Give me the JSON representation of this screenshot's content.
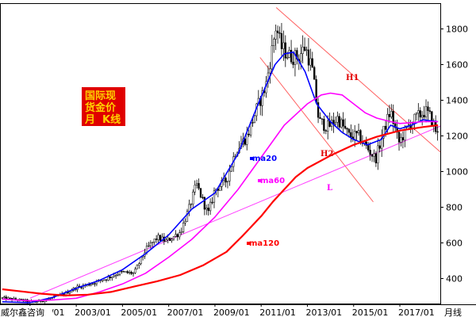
{
  "chart_data": {
    "type": "line",
    "chart_kind": "candlestick",
    "title_lines": [
      "国际现",
      "货金价",
      "月  K线"
    ],
    "title_colors": {
      "background": "#e00000",
      "text": "#ffd200"
    },
    "source_label": "威尔鑫咨询",
    "period_label": "月线",
    "ylim": [
      260,
      1940
    ],
    "y_ticks": [
      400,
      600,
      800,
      1000,
      1200,
      1400,
      1600,
      1800
    ],
    "x_tick_labels": [
      "2001/01",
      "2003/01",
      "2005/01",
      "2007/01",
      "2009/01",
      "2011/01",
      "2013/01",
      "2015/01",
      "2017/01"
    ],
    "x_tick_years": [
      2001,
      2003,
      2005,
      2007,
      2009,
      2011,
      2013,
      2015,
      2017
    ],
    "xlim_years": [
      1999.7,
      2018.75
    ],
    "candle_keypoints": [
      [
        1999.8,
        290
      ],
      [
        2000.5,
        280
      ],
      [
        2001.2,
        268
      ],
      [
        2001.8,
        285
      ],
      [
        2002.5,
        315
      ],
      [
        2003.0,
        350
      ],
      [
        2003.6,
        370
      ],
      [
        2004.3,
        400
      ],
      [
        2004.9,
        435
      ],
      [
        2005.5,
        430
      ],
      [
        2006.0,
        560
      ],
      [
        2006.5,
        630
      ],
      [
        2006.9,
        610
      ],
      [
        2007.5,
        660
      ],
      [
        2007.9,
        800
      ],
      [
        2008.2,
        930
      ],
      [
        2008.7,
        760
      ],
      [
        2009.0,
        900
      ],
      [
        2009.5,
        950
      ],
      [
        2009.9,
        1120
      ],
      [
        2010.4,
        1200
      ],
      [
        2010.8,
        1350
      ],
      [
        2011.2,
        1480
      ],
      [
        2011.65,
        1820
      ],
      [
        2011.85,
        1700
      ],
      [
        2012.2,
        1650
      ],
      [
        2012.6,
        1640
      ],
      [
        2012.9,
        1700
      ],
      [
        2013.2,
        1580
      ],
      [
        2013.5,
        1280
      ],
      [
        2013.9,
        1250
      ],
      [
        2014.3,
        1300
      ],
      [
        2014.8,
        1200
      ],
      [
        2015.2,
        1200
      ],
      [
        2015.6,
        1130
      ],
      [
        2015.95,
        1070
      ],
      [
        2016.4,
        1270
      ],
      [
        2016.6,
        1340
      ],
      [
        2016.95,
        1160
      ],
      [
        2017.4,
        1260
      ],
      [
        2017.7,
        1300
      ],
      [
        2018.1,
        1340
      ],
      [
        2018.35,
        1300
      ],
      [
        2018.65,
        1200
      ]
    ],
    "moving_averages": [
      {
        "name": "ma20",
        "color": "#0000ff",
        "points": [
          [
            1999.8,
            270
          ],
          [
            2001,
            265
          ],
          [
            2002,
            295
          ],
          [
            2003,
            345
          ],
          [
            2004,
            390
          ],
          [
            2005,
            450
          ],
          [
            2006,
            540
          ],
          [
            2007,
            645
          ],
          [
            2008,
            790
          ],
          [
            2009,
            880
          ],
          [
            2010,
            1100
          ],
          [
            2011,
            1420
          ],
          [
            2011.6,
            1600
          ],
          [
            2012,
            1660
          ],
          [
            2012.4,
            1670
          ],
          [
            2012.9,
            1560
          ],
          [
            2013.4,
            1380
          ],
          [
            2014,
            1280
          ],
          [
            2014.5,
            1220
          ],
          [
            2015,
            1180
          ],
          [
            2015.6,
            1150
          ],
          [
            2016.2,
            1180
          ],
          [
            2016.6,
            1260
          ],
          [
            2017,
            1240
          ],
          [
            2017.5,
            1260
          ],
          [
            2018,
            1290
          ],
          [
            2018.65,
            1280
          ]
        ]
      },
      {
        "name": "ma60",
        "color": "#ff00ff",
        "points": [
          [
            1999.8,
            285
          ],
          [
            2001,
            275
          ],
          [
            2002,
            280
          ],
          [
            2003,
            290
          ],
          [
            2004,
            325
          ],
          [
            2005,
            370
          ],
          [
            2006,
            430
          ],
          [
            2007,
            520
          ],
          [
            2008,
            620
          ],
          [
            2009,
            745
          ],
          [
            2010,
            900
          ],
          [
            2011,
            1080
          ],
          [
            2012,
            1260
          ],
          [
            2013,
            1380
          ],
          [
            2013.6,
            1430
          ],
          [
            2014,
            1440
          ],
          [
            2014.5,
            1430
          ],
          [
            2015,
            1380
          ],
          [
            2015.5,
            1330
          ],
          [
            2016,
            1300
          ],
          [
            2016.6,
            1280
          ],
          [
            2017,
            1270
          ],
          [
            2017.6,
            1275
          ],
          [
            2018,
            1280
          ],
          [
            2018.65,
            1280
          ]
        ]
      },
      {
        "name": "ma120",
        "color": "#ff0000",
        "points": [
          [
            1999.8,
            340
          ],
          [
            2000.5,
            330
          ],
          [
            2001.5,
            315
          ],
          [
            2002.5,
            305
          ],
          [
            2003.5,
            310
          ],
          [
            2004.5,
            325
          ],
          [
            2005.5,
            355
          ],
          [
            2006.5,
            385
          ],
          [
            2007.5,
            420
          ],
          [
            2008.5,
            475
          ],
          [
            2009.5,
            550
          ],
          [
            2010.2,
            640
          ],
          [
            2011,
            750
          ],
          [
            2011.5,
            830
          ],
          [
            2012,
            900
          ],
          [
            2012.5,
            970
          ],
          [
            2013,
            1020
          ],
          [
            2014,
            1090
          ],
          [
            2015,
            1150
          ],
          [
            2016,
            1195
          ],
          [
            2017,
            1230
          ],
          [
            2018,
            1250
          ],
          [
            2018.65,
            1260
          ]
        ]
      }
    ],
    "trendlines": [
      {
        "name": "H1",
        "color": "#ff6060",
        "start": [
          2011.65,
          1920
        ],
        "end": [
          2018.75,
          1110
        ]
      },
      {
        "name": "H2",
        "color": "#ff6060",
        "start": [
          2010.95,
          1640
        ],
        "end": [
          2015.85,
          830
        ]
      },
      {
        "name": "L",
        "color": "#ff40ff",
        "start": [
          2001.0,
          290
        ],
        "end": [
          2018.75,
          1255
        ]
      }
    ],
    "series_labels": {
      "ma20": "ma20",
      "ma60": "ma60",
      "ma120": "ma120",
      "H1": "H1",
      "H2": "H2",
      "L": "L"
    },
    "grid": false,
    "background": "#ffffff"
  }
}
